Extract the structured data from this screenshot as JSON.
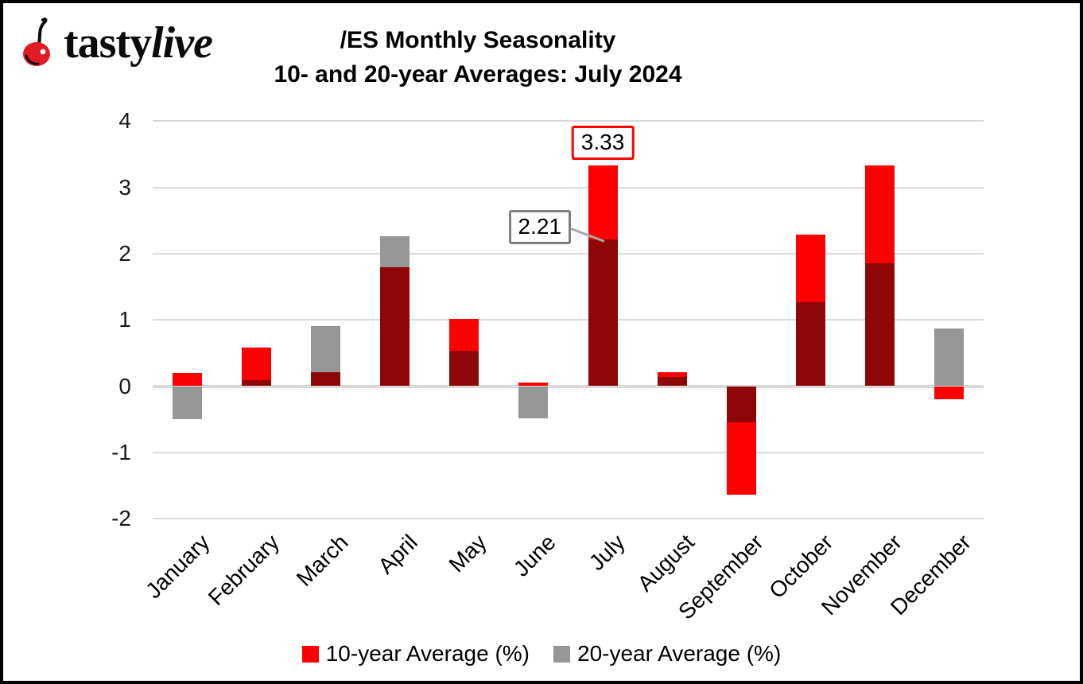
{
  "logo": {
    "icon": "cherry-icon",
    "brand_tasty": "tasty",
    "brand_live": "live"
  },
  "title": {
    "line1": "/ES Monthly Seasonality",
    "line2": "10- and 20-year Averages: July 2024"
  },
  "chart_data": {
    "type": "bar",
    "title": "/ES Monthly Seasonality",
    "subtitle": "10- and 20-year Averages: July 2024",
    "categories": [
      "January",
      "February",
      "March",
      "April",
      "May",
      "June",
      "July",
      "August",
      "September",
      "October",
      "November",
      "December"
    ],
    "series": [
      {
        "name": "10-year Average (%)",
        "color": "#ff0000",
        "values": [
          0.2,
          0.58,
          0.21,
          1.8,
          1.01,
          0.05,
          3.33,
          0.21,
          -1.64,
          2.29,
          3.33,
          -0.2
        ]
      },
      {
        "name": "20-year Average (%)",
        "color": "#969696",
        "values": [
          -0.5,
          0.09,
          0.91,
          2.26,
          0.53,
          -0.49,
          2.21,
          0.14,
          -0.55,
          1.27,
          1.86,
          0.87
        ]
      }
    ],
    "overlap_color": "#8e0606",
    "ylim": [
      -2,
      4
    ],
    "yticks": [
      4,
      3,
      2,
      1,
      0,
      -1,
      -2
    ],
    "grid": true,
    "gridline_color": "#d9d9d9",
    "legend_position": "bottom",
    "annotations": [
      {
        "text": "3.33",
        "month": "July",
        "series": "10-year Average (%)",
        "value": 3.33,
        "border_color": "#ff0000",
        "placement": "above"
      },
      {
        "text": "2.21",
        "month": "July",
        "series": "20-year Average (%)",
        "value": 2.21,
        "border_color": "#7f7f7f",
        "placement": "left",
        "leader_color": "#a6a6a6"
      }
    ]
  },
  "legend": {
    "items": [
      {
        "label": "10-year Average (%)",
        "color": "#ff0000"
      },
      {
        "label": "20-year Average (%)",
        "color": "#969696"
      }
    ]
  }
}
